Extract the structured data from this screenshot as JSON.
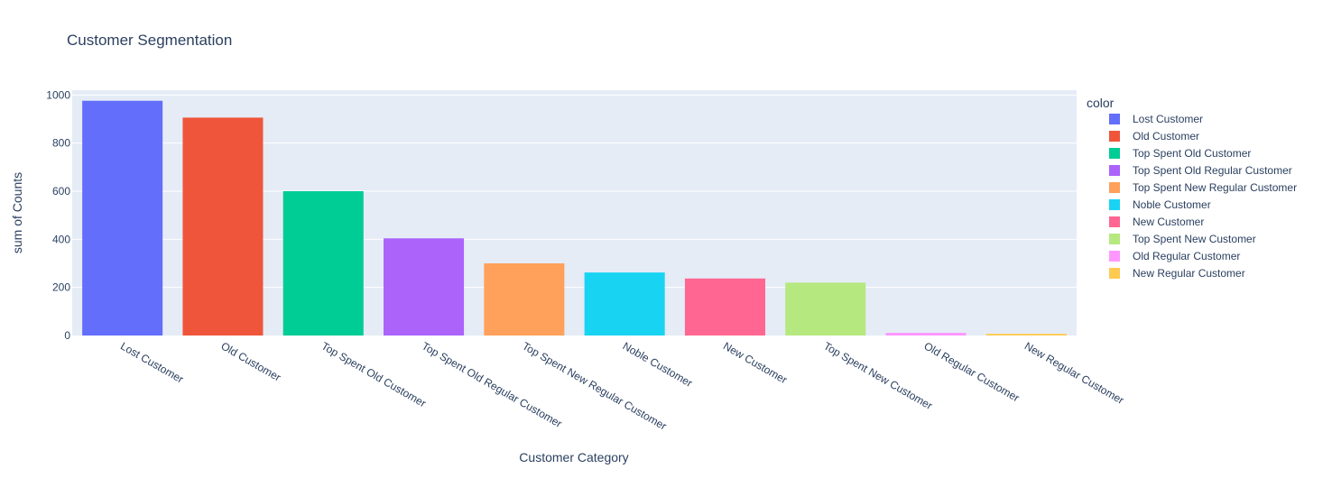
{
  "chart_data": {
    "type": "bar",
    "title": "Customer Segmentation",
    "xlabel": "Customer Category",
    "ylabel": "sum of Counts",
    "legend_title": "color",
    "legend_position": "right",
    "grid": true,
    "ylim": [
      0,
      1000
    ],
    "yticks": [
      0,
      200,
      400,
      600,
      800,
      1000
    ],
    "categories": [
      "Lost Customer",
      "Old Customer",
      "Top Spent Old Customer",
      "Top Spent Old Regular Customer",
      "Top Spent New Regular Customer",
      "Noble Customer",
      "New Customer",
      "Top Spent New Customer",
      "Old Regular Customer",
      "New Regular Customer"
    ],
    "values": [
      976,
      906,
      600,
      404,
      300,
      262,
      237,
      220,
      11,
      7
    ],
    "colors": [
      "#636efa",
      "#EF553B",
      "#00cc96",
      "#ab63fa",
      "#FFA15A",
      "#19d3f3",
      "#FF6692",
      "#B6E880",
      "#FF97FF",
      "#FECB52"
    ]
  }
}
